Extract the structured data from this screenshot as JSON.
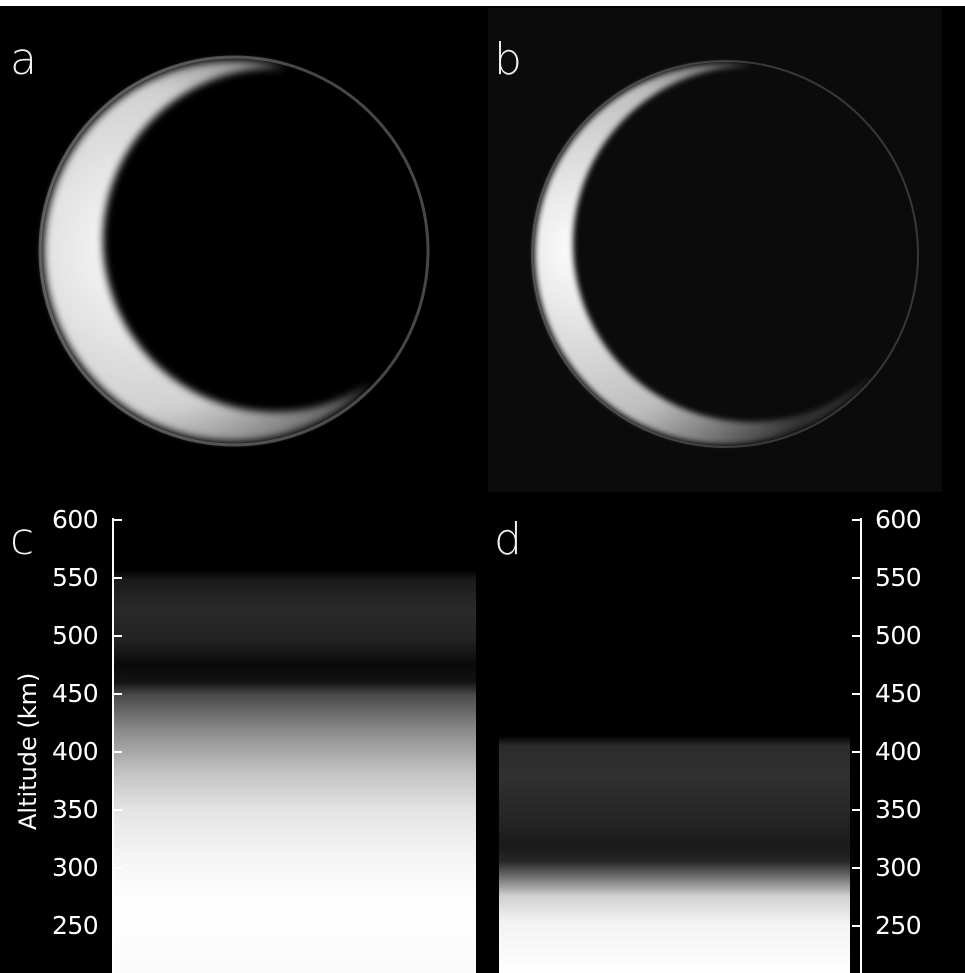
{
  "panels": {
    "a": {
      "label": "a"
    },
    "b": {
      "label": "b"
    },
    "c": {
      "label": "c"
    },
    "d": {
      "label": "d"
    }
  },
  "altitude_axis": {
    "title": "Altitude (km)",
    "unit": "km",
    "ticks": [
      600,
      550,
      500,
      450,
      400,
      350,
      300,
      250
    ],
    "range": [
      220,
      605
    ]
  },
  "colors": {
    "background": "#000000",
    "foreground": "#ffffff"
  }
}
